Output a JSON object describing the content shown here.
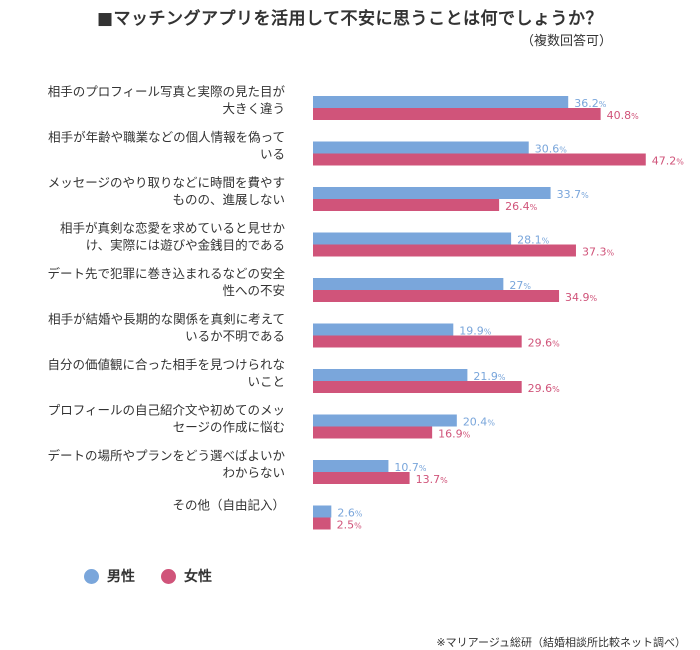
{
  "chart_data": {
    "type": "bar",
    "orientation": "horizontal",
    "title": "■マッチングアプリを活用して不安に思うことは何でしょうか？",
    "subtitle": "（複数回答可）",
    "unit": "%",
    "categories": [
      [
        "相手のプロフィール写真と実際の見た目が",
        "大きく違う"
      ],
      [
        "相手が年齢や職業などの個人情報を偽って",
        "いる"
      ],
      [
        "メッセージのやり取りなどに時間を費やす",
        "ものの、進展しない"
      ],
      [
        "相手が真剣な恋愛を求めていると見せか",
        "け、実際には遊びや金銭目的である"
      ],
      [
        "デート先で犯罪に巻き込まれるなどの安全",
        "性への不安"
      ],
      [
        "相手が結婚や長期的な関係を真剣に考えて",
        "いるか不明である"
      ],
      [
        "自分の価値観に合った相手を見つけられな",
        "いこと"
      ],
      [
        "プロフィールの自己紹介文や初めてのメッ",
        "セージの作成に悩む"
      ],
      [
        "デートの場所やプランをどう選べばよいか",
        "わからない"
      ],
      [
        "その他（自由記入）"
      ]
    ],
    "series": [
      {
        "name": "男性",
        "color": "#7aa6db",
        "values": [
          36.2,
          30.6,
          33.7,
          28.1,
          27,
          19.9,
          21.9,
          20.4,
          10.7,
          2.6
        ]
      },
      {
        "name": "女性",
        "color": "#d0547a",
        "values": [
          40.8,
          47.2,
          26.4,
          37.3,
          34.9,
          29.6,
          29.6,
          16.9,
          13.7,
          2.5
        ]
      }
    ],
    "xlim": [
      0,
      50
    ],
    "grid": false,
    "legend": "bottom-left",
    "source": "※マリアージュ総研（結婚相談所比較ネット調べ）"
  }
}
